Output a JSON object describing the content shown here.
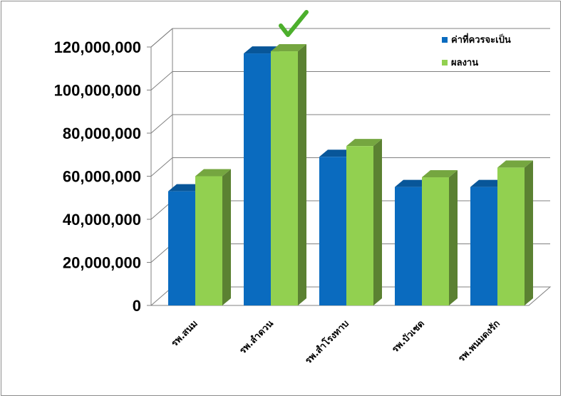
{
  "chart_data": {
    "type": "bar",
    "style": "3d-clustered-column",
    "categories": [
      "รพ.สนม",
      "รพ.ลำดวน",
      "รพ.สำโรงทาบ",
      "รพ.บัวเชด",
      "รพ.พนมดงรัก"
    ],
    "series": [
      {
        "name": "ค่าที่ควรจะเป็น",
        "color": "#0a6bbf",
        "values": [
          53000000,
          117000000,
          69000000,
          55000000,
          55000000
        ]
      },
      {
        "name": "ผลงาน",
        "color": "#92d050",
        "values": [
          60000000,
          118000000,
          74000000,
          59500000,
          64000000
        ]
      }
    ],
    "ylim": [
      0,
      120000000
    ],
    "yticks": [
      "0",
      "20,000,000",
      "40,000,000",
      "60,000,000",
      "80,000,000",
      "100,000,000",
      "120,000,000"
    ],
    "grid": true,
    "legend": "top-right",
    "annotation": "check-mark over รพ.ลำดวน"
  }
}
